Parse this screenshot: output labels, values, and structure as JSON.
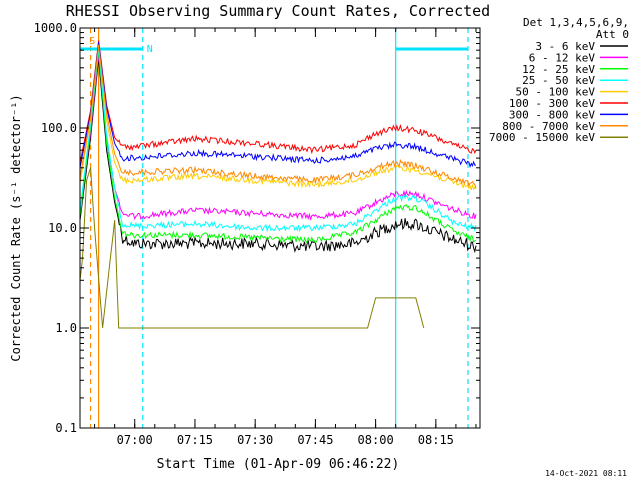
{
  "chart_data": {
    "type": "line",
    "title": "RHESSI Observing Summary Count Rates, Corrected",
    "ylabel": "Corrected Count Rate (s⁻¹ detector⁻¹)",
    "xlabel": "Start Time (01-Apr-09 06:46:22)",
    "yscale": "log",
    "ylim": [
      0.1,
      1000
    ],
    "xlim": [
      "06:46:22",
      "08:26:00"
    ],
    "grid": false,
    "legend_position": "top-right",
    "y_tick_labels": [
      "0.1",
      "1.0",
      "10.0",
      "100.0",
      "1000.0"
    ],
    "y_ticks": [
      0.1,
      1,
      10,
      100,
      1000
    ],
    "x_tick_labels": [
      "07:00",
      "07:15",
      "07:30",
      "07:45",
      "08:00",
      "08:15"
    ],
    "x_ticks": [
      "07:00",
      "07:15",
      "07:30",
      "07:45",
      "08:00",
      "08:15"
    ],
    "legend_header": [
      "Det 1,3,4,5,6,9,",
      "Att 0"
    ],
    "series": [
      {
        "name": "3 - 6 keV",
        "color": "#000000",
        "x": [
          "06:46:22",
          "06:49",
          "06:51",
          "06:53",
          "06:55",
          "06:57",
          "07:00",
          "07:15",
          "07:30",
          "07:45",
          "07:55",
          "08:00",
          "08:05",
          "08:10",
          "08:15",
          "08:20",
          "08:25"
        ],
        "values": [
          12,
          80,
          500,
          60,
          18,
          8,
          7,
          7,
          7,
          6.5,
          7,
          9,
          11,
          11,
          9,
          7.5,
          6.5
        ]
      },
      {
        "name": "6 - 12 keV",
        "color": "#ff00ff",
        "x": [
          "06:46:22",
          "06:49",
          "06:51",
          "06:53",
          "06:55",
          "06:57",
          "07:00",
          "07:15",
          "07:30",
          "07:45",
          "07:55",
          "08:00",
          "08:05",
          "08:10",
          "08:15",
          "08:20",
          "08:25"
        ],
        "values": [
          14,
          90,
          550,
          80,
          25,
          14,
          13,
          15,
          14,
          13,
          14,
          18,
          22,
          22,
          18,
          15,
          13
        ]
      },
      {
        "name": "12 - 25 keV",
        "color": "#00ff00",
        "x": [
          "06:46:22",
          "06:49",
          "06:51",
          "06:53",
          "06:55",
          "06:57",
          "07:00",
          "07:15",
          "07:30",
          "07:45",
          "07:55",
          "08:00",
          "08:05",
          "08:10",
          "08:15",
          "08:20",
          "08:25"
        ],
        "values": [
          13,
          100,
          600,
          70,
          20,
          9,
          8.5,
          8.5,
          8,
          7.5,
          9,
          12,
          16,
          16,
          12,
          9,
          7.5
        ]
      },
      {
        "name": "25 - 50 keV",
        "color": "#00ffff",
        "x": [
          "06:46:22",
          "06:49",
          "06:51",
          "06:53",
          "06:55",
          "06:57",
          "07:00",
          "07:15",
          "07:30",
          "07:45",
          "07:55",
          "08:00",
          "08:05",
          "08:10",
          "08:15",
          "08:20",
          "08:25"
        ],
        "values": [
          15,
          110,
          650,
          85,
          25,
          11,
          10.5,
          11,
          10,
          10,
          11,
          15,
          20,
          20,
          15,
          11,
          10
        ]
      },
      {
        "name": "50 - 100 keV",
        "color": "#ffcc00",
        "x": [
          "06:46:22",
          "06:49",
          "06:51",
          "06:53",
          "06:55",
          "06:57",
          "07:00",
          "07:15",
          "07:30",
          "07:45",
          "07:55",
          "08:00",
          "08:05",
          "08:10",
          "08:15",
          "08:20",
          "08:25"
        ],
        "values": [
          28,
          120,
          700,
          120,
          45,
          30,
          30,
          33,
          30,
          27,
          30,
          36,
          40,
          38,
          33,
          28,
          25
        ]
      },
      {
        "name": "100 - 300 keV",
        "color": "#ff0000",
        "x": [
          "06:46:22",
          "06:49",
          "06:51",
          "06:53",
          "06:55",
          "06:57",
          "07:00",
          "07:15",
          "07:30",
          "07:45",
          "07:55",
          "08:00",
          "08:05",
          "08:10",
          "08:15",
          "08:20",
          "08:25"
        ],
        "values": [
          45,
          150,
          750,
          170,
          80,
          65,
          65,
          78,
          70,
          60,
          68,
          88,
          100,
          95,
          80,
          66,
          58
        ]
      },
      {
        "name": "300 - 800 keV",
        "color": "#0000ff",
        "x": [
          "06:46:22",
          "06:49",
          "06:51",
          "06:53",
          "06:55",
          "06:57",
          "07:00",
          "07:15",
          "07:30",
          "07:45",
          "07:55",
          "08:00",
          "08:05",
          "08:10",
          "08:15",
          "08:20",
          "08:25"
        ],
        "values": [
          40,
          140,
          720,
          160,
          70,
          50,
          50,
          56,
          52,
          47,
          52,
          62,
          68,
          65,
          56,
          48,
          42
        ]
      },
      {
        "name": "800 - 7000 keV",
        "color": "#ff8800",
        "x": [
          "06:46:22",
          "06:49",
          "06:51",
          "06:53",
          "06:55",
          "06:57",
          "07:00",
          "07:15",
          "07:30",
          "07:45",
          "07:55",
          "08:00",
          "08:05",
          "08:10",
          "08:15",
          "08:20",
          "08:25"
        ],
        "values": [
          32,
          130,
          680,
          140,
          55,
          36,
          36,
          38,
          33,
          30,
          34,
          40,
          45,
          42,
          36,
          31,
          27
        ]
      },
      {
        "name": "7000 - 15000 keV",
        "color": "#808000",
        "x": [
          "06:46:22",
          "06:47",
          "06:48",
          "06:49",
          "06:50",
          "06:52",
          "06:55",
          "06:56",
          "07:00",
          "07:30",
          "07:58",
          "08:00",
          "08:05",
          "08:10",
          "08:12"
        ],
        "values": [
          3,
          5,
          30,
          40,
          10,
          1,
          12,
          1,
          1,
          1,
          1,
          2,
          2,
          2,
          1
        ]
      }
    ],
    "annotations": {
      "markers": [
        {
          "label": "S",
          "color": "#ff8800"
        },
        {
          "label": "N",
          "color": "#00e5ff"
        }
      ],
      "vertical_lines": [
        {
          "time": "06:49:00",
          "color": "#ff8800",
          "style": "dashed"
        },
        {
          "time": "06:51:00",
          "color": "#ff8800",
          "style": "solid"
        },
        {
          "time": "07:02:00",
          "color": "#00e5ff",
          "style": "dashed"
        },
        {
          "time": "08:05:00",
          "color": "#00e5ff",
          "style": "solid"
        },
        {
          "time": "08:23:00",
          "color": "#00e5ff",
          "style": "dashed"
        }
      ],
      "night_bars": [
        {
          "start": "06:46:22",
          "end": "07:02:00",
          "color": "#00e5ff"
        },
        {
          "start": "08:05:00",
          "end": "08:23:00",
          "color": "#00e5ff"
        }
      ]
    },
    "timestamp": "14-Oct-2021 08:11"
  }
}
